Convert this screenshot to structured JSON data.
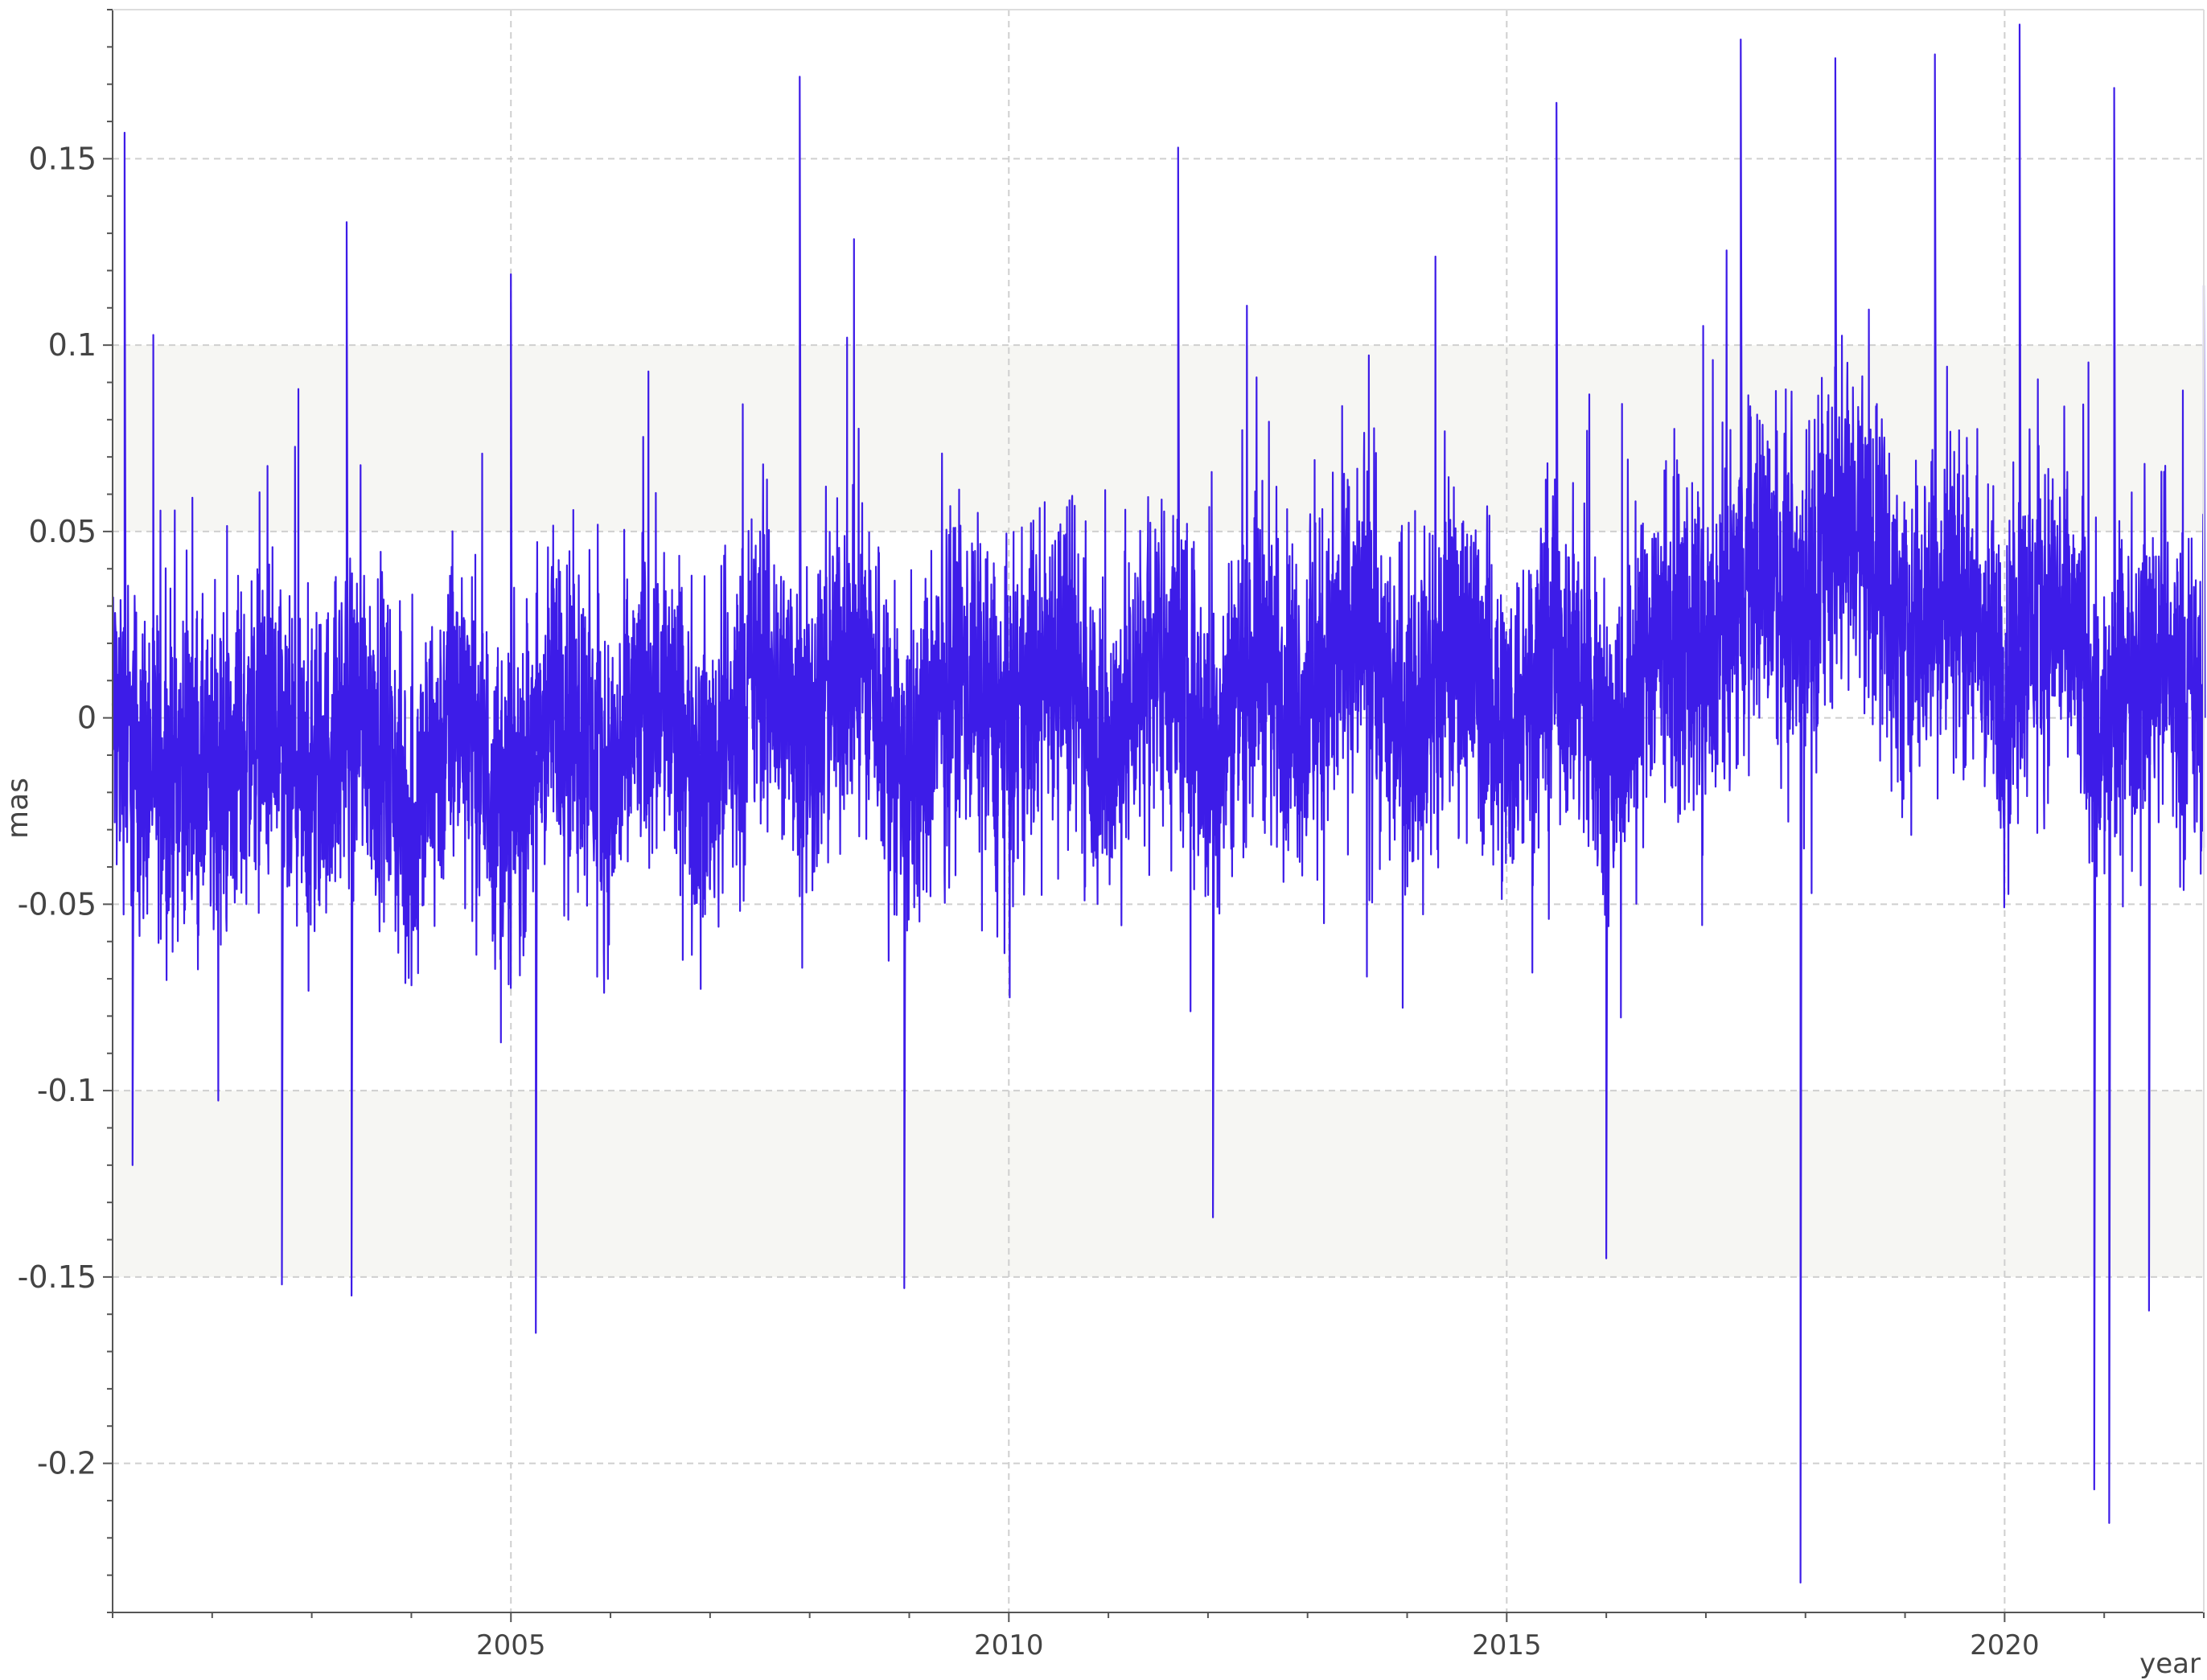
{
  "chart_data": {
    "type": "line",
    "title": "",
    "xlabel": "year",
    "ylabel": "mas",
    "xlim": [
      2001.0,
      2022.0
    ],
    "ylim": [
      -0.24,
      0.19
    ],
    "grid": true,
    "x_ticks": [
      2005,
      2010,
      2015,
      2020
    ],
    "x_tick_labels": [
      "2005",
      "2010",
      "2015",
      "2020"
    ],
    "y_ticks": [
      0.15,
      0.1,
      0.05,
      0,
      -0.05,
      -0.1,
      -0.15,
      -0.2
    ],
    "y_tick_labels": [
      "0.15",
      "0.1",
      "0.05",
      "0",
      "-0.05",
      "-0.1",
      "-0.15",
      "-0.2"
    ],
    "shaded_bands": [
      {
        "y0": 0.05,
        "y1": 0.1
      },
      {
        "y0": -0.15,
        "y1": -0.1
      }
    ],
    "series": [
      {
        "color": "#3d1ce8",
        "x": [
          2001.0,
          2001.25,
          2001.5,
          2001.75,
          2002.0,
          2002.25,
          2002.5,
          2002.75,
          2003.0,
          2003.25,
          2003.5,
          2003.75,
          2004.0,
          2004.25,
          2004.5,
          2004.75,
          2005.0,
          2005.25,
          2005.5,
          2005.75,
          2006.0,
          2006.25,
          2006.5,
          2006.75,
          2007.0,
          2007.25,
          2007.5,
          2007.75,
          2008.0,
          2008.25,
          2008.5,
          2008.75,
          2009.0,
          2009.25,
          2009.5,
          2009.75,
          2010.0,
          2010.25,
          2010.5,
          2010.75,
          2011.0,
          2011.25,
          2011.5,
          2011.75,
          2012.0,
          2012.25,
          2012.5,
          2012.75,
          2013.0,
          2013.25,
          2013.5,
          2013.75,
          2014.0,
          2014.25,
          2014.5,
          2014.75,
          2015.0,
          2015.25,
          2015.5,
          2015.75,
          2016.0,
          2016.25,
          2016.5,
          2016.75,
          2017.0,
          2017.25,
          2017.5,
          2017.75,
          2018.0,
          2018.25,
          2018.5,
          2018.75,
          2019.0,
          2019.25,
          2019.5,
          2019.75,
          2020.0,
          2020.25,
          2020.5,
          2020.75,
          2021.0,
          2021.25,
          2021.5,
          2021.75,
          2022.0
        ],
        "y": [
          0.0,
          -0.01,
          -0.015,
          -0.01,
          -0.02,
          -0.01,
          0.0,
          -0.015,
          -0.02,
          -0.005,
          0.005,
          -0.01,
          -0.03,
          -0.01,
          0.005,
          -0.015,
          -0.025,
          -0.01,
          0.01,
          -0.005,
          -0.02,
          0.0,
          0.01,
          -0.01,
          -0.015,
          0.0,
          0.015,
          0.005,
          -0.005,
          0.01,
          0.02,
          0.0,
          -0.02,
          0.0,
          0.015,
          0.005,
          -0.005,
          0.01,
          0.02,
          0.005,
          -0.01,
          0.005,
          0.02,
          0.01,
          -0.01,
          0.005,
          0.02,
          0.01,
          0.0,
          0.015,
          0.025,
          0.01,
          0.0,
          0.01,
          0.02,
          0.01,
          -0.005,
          0.01,
          0.02,
          0.01,
          -0.01,
          0.005,
          0.025,
          0.02,
          0.01,
          0.03,
          0.045,
          0.035,
          0.03,
          0.05,
          0.055,
          0.04,
          0.02,
          0.03,
          0.035,
          0.02,
          0.01,
          0.025,
          0.03,
          0.015,
          -0.005,
          0.01,
          0.02,
          0.01,
          0.0
        ],
        "envelope_halfwidth": 0.045,
        "peaks": [
          {
            "x": 2001.12,
            "y": 0.157
          },
          {
            "x": 2001.2,
            "y": -0.12
          },
          {
            "x": 2002.7,
            "y": -0.152
          },
          {
            "x": 2003.4,
            "y": -0.155
          },
          {
            "x": 2003.35,
            "y": 0.133
          },
          {
            "x": 2005.0,
            "y": 0.119
          },
          {
            "x": 2005.25,
            "y": -0.165
          },
          {
            "x": 2007.9,
            "y": 0.172
          },
          {
            "x": 2008.95,
            "y": -0.153
          },
          {
            "x": 2011.7,
            "y": 0.153
          },
          {
            "x": 2012.05,
            "y": -0.134
          },
          {
            "x": 2015.5,
            "y": 0.165
          },
          {
            "x": 2016.0,
            "y": -0.145
          },
          {
            "x": 2017.35,
            "y": 0.182
          },
          {
            "x": 2017.95,
            "y": -0.232
          },
          {
            "x": 2018.3,
            "y": 0.177
          },
          {
            "x": 2019.3,
            "y": 0.178
          },
          {
            "x": 2020.15,
            "y": 0.186
          },
          {
            "x": 2020.9,
            "y": -0.207
          },
          {
            "x": 2021.05,
            "y": -0.216
          },
          {
            "x": 2021.1,
            "y": 0.169
          },
          {
            "x": 2021.45,
            "y": -0.159
          },
          {
            "x": 2022.0,
            "y": 0.116
          }
        ]
      }
    ]
  }
}
